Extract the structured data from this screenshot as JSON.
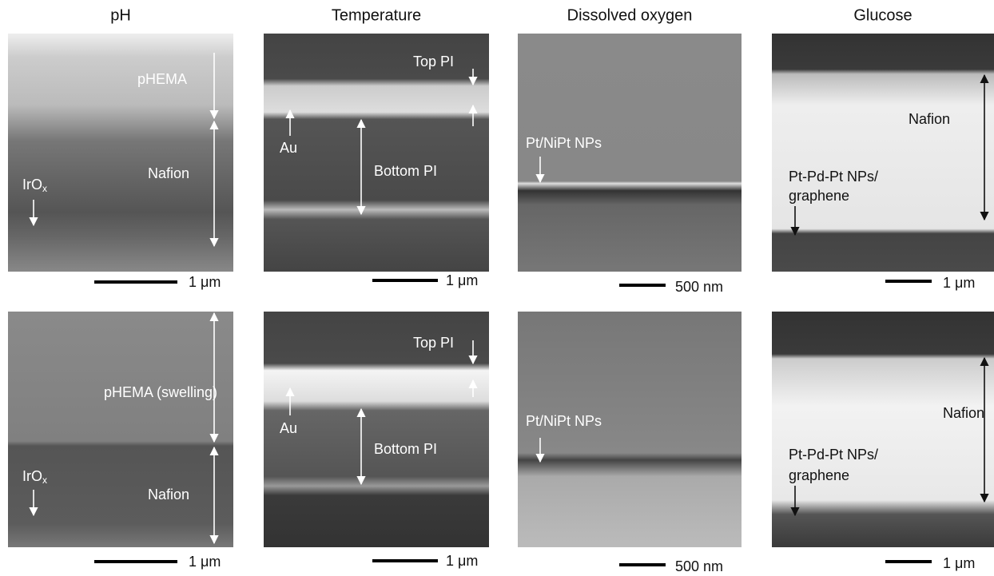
{
  "columns": [
    {
      "title": "pH",
      "panels": [
        {
          "labels": [
            "pHEMA",
            "Nafion",
            {
              "text": "IrO",
              "sub": "x"
            }
          ],
          "scale_bar": "1 μm"
        },
        {
          "labels": [
            "pHEMA (swelling)",
            "Nafion",
            {
              "text": "IrO",
              "sub": "x"
            }
          ],
          "scale_bar": "1 μm"
        }
      ]
    },
    {
      "title": "Temperature",
      "panels": [
        {
          "labels": [
            "Top PI",
            "Au",
            "Bottom PI"
          ],
          "scale_bar": "1 μm"
        },
        {
          "labels": [
            "Top PI",
            "Au",
            "Bottom PI"
          ],
          "scale_bar": "1 μm"
        }
      ]
    },
    {
      "title": "Dissolved oxygen",
      "panels": [
        {
          "labels": [
            "Pt/NiPt NPs"
          ],
          "scale_bar": "500 nm"
        },
        {
          "labels": [
            "Pt/NiPt NPs"
          ],
          "scale_bar": "500 nm"
        }
      ]
    },
    {
      "title": "Glucose",
      "panels": [
        {
          "labels": [
            "Nafion",
            "Pt-Pd-Pt NPs/",
            "graphene"
          ],
          "scale_bar": "1 μm"
        },
        {
          "labels": [
            "Nafion",
            "Pt-Pd-Pt NPs/",
            "graphene"
          ],
          "scale_bar": "1 μm"
        }
      ]
    }
  ]
}
